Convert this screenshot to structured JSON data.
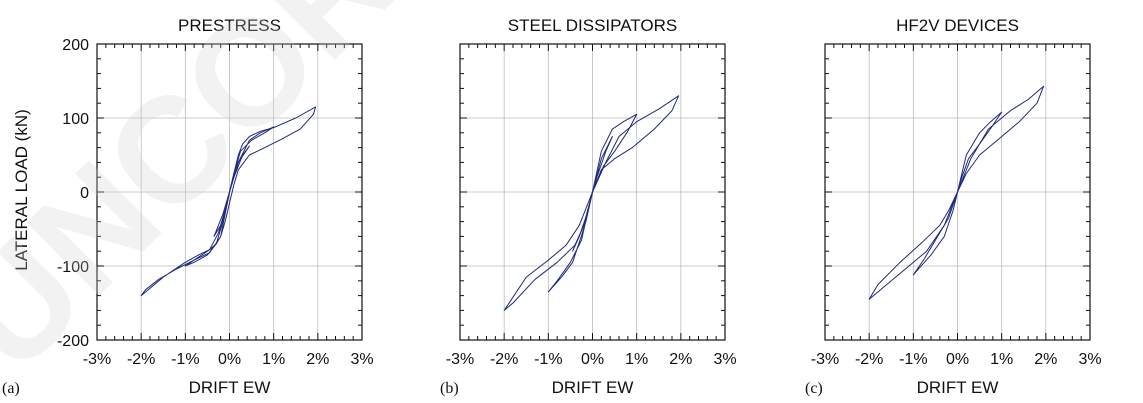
{
  "watermark": "UNCOR",
  "ylabel": "LATERAL LOAD (kN)",
  "chart_data": [
    {
      "type": "line",
      "panel_label": "(a)",
      "title": "PRESTRESS",
      "xlabel": "DRIFT EW",
      "xlim": [
        -3,
        3
      ],
      "ylim": [
        -200,
        200
      ],
      "x_ticks": [
        "-3%",
        "-2%",
        "-1%",
        "0%",
        "1%",
        "2%",
        "3%"
      ],
      "y_ticks": [
        "200",
        "100",
        "0",
        "-100",
        "-200"
      ],
      "x_unit": "%",
      "y_unit": "kN",
      "series": [
        {
          "x": [
            0,
            0.1,
            0.2,
            0.3,
            0.45,
            0.7,
            1.0,
            1.5,
            1.95,
            1.9,
            1.6,
            1.2,
            0.8,
            0.45,
            0.2,
            0.1,
            0,
            -0.1,
            -0.2,
            -0.3,
            -0.45,
            -0.7,
            -1.0,
            -1.5,
            -2.0,
            -1.9,
            -1.6,
            -1.2,
            -0.8,
            -0.45,
            -0.2,
            -0.1,
            0
          ],
          "y": [
            0,
            25,
            50,
            65,
            75,
            82,
            87,
            100,
            115,
            105,
            85,
            72,
            60,
            50,
            30,
            10,
            -15,
            -40,
            -60,
            -70,
            -78,
            -85,
            -95,
            -115,
            -140,
            -132,
            -118,
            -104,
            -92,
            -82,
            -60,
            -30,
            0
          ]
        },
        {
          "x": [
            0,
            0.2,
            0.45,
            0.7,
            1.0,
            0.8,
            0.5,
            0.25,
            0.1,
            0,
            -0.1,
            -0.25,
            -0.45,
            -0.7,
            -1.0,
            -0.8,
            -0.5,
            -0.3,
            -0.15,
            0
          ],
          "y": [
            0,
            40,
            70,
            80,
            88,
            80,
            70,
            55,
            25,
            0,
            -25,
            -55,
            -78,
            -88,
            -100,
            -95,
            -85,
            -70,
            -40,
            0
          ]
        },
        {
          "x": [
            0,
            0.2,
            0.45,
            0.3,
            0.1,
            0,
            -0.15,
            -0.35,
            -0.2,
            -0.05,
            0
          ],
          "y": [
            0,
            40,
            62,
            50,
            20,
            0,
            -30,
            -60,
            -45,
            -15,
            0
          ]
        }
      ]
    },
    {
      "type": "line",
      "panel_label": "(b)",
      "title": "STEEL DISSIPATORS",
      "xlabel": "DRIFT EW",
      "xlim": [
        -3,
        3
      ],
      "ylim": [
        -200,
        200
      ],
      "x_ticks": [
        "-3%",
        "-2%",
        "-1%",
        "0%",
        "1%",
        "2%",
        "3%"
      ],
      "y_ticks": [
        "200",
        "100",
        "0",
        "-100",
        "-200"
      ],
      "x_unit": "%",
      "y_unit": "kN",
      "series": [
        {
          "x": [
            0,
            0.3,
            0.6,
            1.0,
            1.5,
            1.95,
            1.8,
            1.4,
            0.9,
            0.5,
            0.2,
            0,
            -0.3,
            -0.6,
            -1.0,
            -1.5,
            -2.0,
            -1.8,
            -1.3,
            -0.8,
            -0.4,
            -0.15,
            0
          ],
          "y": [
            0,
            40,
            75,
            95,
            112,
            130,
            110,
            85,
            60,
            45,
            30,
            0,
            -45,
            -72,
            -92,
            -115,
            -160,
            -150,
            -118,
            -95,
            -72,
            -40,
            0
          ]
        },
        {
          "x": [
            0,
            0.2,
            0.45,
            0.7,
            1.0,
            0.8,
            0.5,
            0.25,
            0.1,
            0,
            -0.2,
            -0.45,
            -0.7,
            -1.0,
            -0.8,
            -0.5,
            -0.25,
            -0.1,
            0
          ],
          "y": [
            0,
            55,
            85,
            95,
            105,
            82,
            55,
            35,
            15,
            0,
            -50,
            -95,
            -115,
            -135,
            -120,
            -95,
            -65,
            -25,
            0
          ]
        },
        {
          "x": [
            0,
            0.2,
            0.45,
            0.3,
            0.1,
            0,
            -0.2,
            -0.45,
            -0.3,
            -0.1,
            0
          ],
          "y": [
            0,
            45,
            75,
            55,
            20,
            0,
            -45,
            -80,
            -60,
            -25,
            0
          ]
        }
      ]
    },
    {
      "type": "line",
      "panel_label": "(c)",
      "title": "HF2V DEVICES",
      "xlabel": "DRIFT EW",
      "xlim": [
        -3,
        3
      ],
      "ylim": [
        -200,
        200
      ],
      "x_ticks": [
        "-3%",
        "-2%",
        "-1%",
        "0%",
        "1%",
        "2%",
        "3%"
      ],
      "y_ticks": [
        "200",
        "100",
        "0",
        "-100",
        "-200"
      ],
      "x_unit": "%",
      "y_unit": "kN",
      "series": [
        {
          "x": [
            0,
            0.3,
            0.7,
            1.2,
            1.6,
            1.95,
            1.8,
            1.4,
            0.9,
            0.5,
            0.2,
            0,
            -0.3,
            -0.7,
            -1.2,
            -1.6,
            -2.0,
            -1.8,
            -1.3,
            -0.8,
            -0.4,
            -0.2,
            0
          ],
          "y": [
            0,
            45,
            85,
            110,
            125,
            143,
            120,
            95,
            70,
            50,
            25,
            0,
            -45,
            -80,
            -105,
            -125,
            -145,
            -125,
            -95,
            -68,
            -45,
            -25,
            0
          ]
        },
        {
          "x": [
            0,
            0.2,
            0.5,
            0.75,
            1.0,
            0.8,
            0.5,
            0.25,
            0.1,
            0,
            -0.2,
            -0.5,
            -0.75,
            -1.0,
            -0.9,
            -0.6,
            -0.3,
            -0.1,
            0
          ],
          "y": [
            0,
            50,
            80,
            95,
            108,
            90,
            65,
            45,
            20,
            0,
            -35,
            -65,
            -90,
            -112,
            -105,
            -85,
            -60,
            -25,
            0
          ]
        }
      ]
    }
  ]
}
